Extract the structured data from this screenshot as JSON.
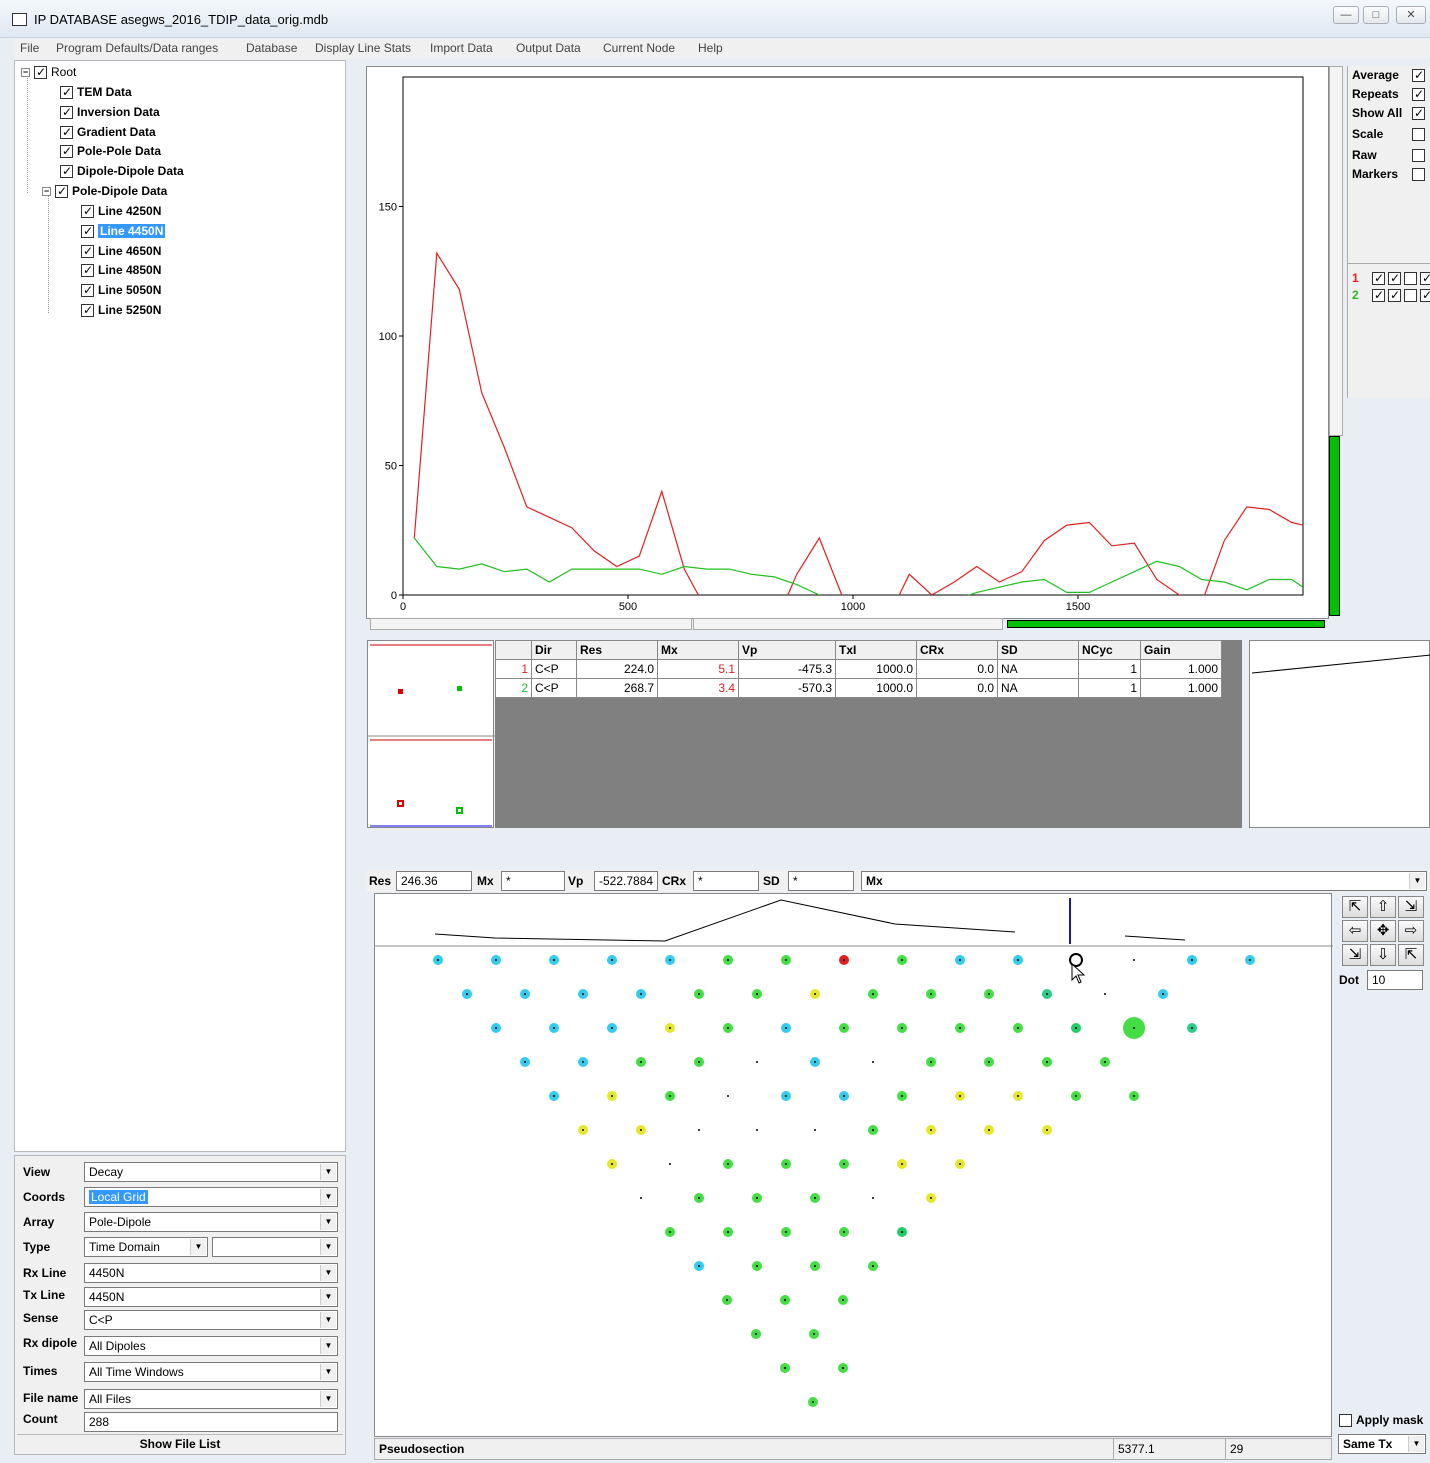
{
  "window": {
    "title": "IP DATABASE asegws_2016_TDIP_data_orig.mdb"
  },
  "menu": [
    "File",
    "Program Defaults/Data ranges",
    "Database",
    "Display Line Stats",
    "Import Data",
    "Output Data",
    "Current Node",
    "Help"
  ],
  "tree": {
    "root": "Root",
    "items": [
      "TEM Data",
      "Inversion Data",
      "Gradient Data",
      "Pole-Pole Data",
      "Dipole-Dipole Data",
      "Pole-Dipole Data"
    ],
    "lines": [
      "Line 4250N",
      "Line 4450N",
      "Line 4650N",
      "Line 4850N",
      "Line 5050N",
      "Line 5250N"
    ],
    "selected_line": "Line 4450N"
  },
  "form": {
    "view_label": "View",
    "view_value": "Decay",
    "coords_label": "Coords",
    "coords_value": "Local Grid",
    "array_label": "Array",
    "array_value": "Pole-Dipole",
    "type_label": "Type",
    "type_value": "Time Domain",
    "rxline_label": "Rx Line",
    "rxline_value": "4450N",
    "txline_label": "Tx Line",
    "txline_value": "4450N",
    "sense_label": "Sense",
    "sense_value": "C<P",
    "rxdipole_label": "Rx dipole",
    "rxdipole_value": "All Dipoles",
    "times_label": "Times",
    "times_value": "All Time Windows",
    "filename_label": "File name",
    "filename_value": "All Files",
    "count_label": "Count",
    "count_value": "288",
    "show_file_list": "Show File List"
  },
  "options": {
    "average": "Average",
    "repeats": "Repeats",
    "show_all": "Show All",
    "scale": "Scale",
    "raw": "Raw",
    "markers": "Markers",
    "series_1": "1",
    "series_2": "2"
  },
  "chart_data": {
    "type": "line",
    "x_ticks": [
      "0",
      "500",
      "1000",
      "1500"
    ],
    "y_ticks": [
      "0",
      "50",
      "100",
      "150"
    ],
    "xlim": [
      0,
      2000
    ],
    "ylim": [
      0,
      200
    ],
    "series": [
      {
        "color": "#e02020",
        "x": [
          25,
          75,
          125,
          175,
          225,
          275,
          325,
          375,
          425,
          475,
          525,
          575,
          625,
          675,
          725,
          775,
          825,
          875,
          925,
          975,
          1025,
          1075,
          1125,
          1175,
          1225,
          1275,
          1325,
          1375,
          1425,
          1475,
          1525,
          1575,
          1625,
          1675,
          1725,
          1775,
          1825,
          1875,
          1925,
          1975,
          2000
        ],
        "y": [
          22,
          132,
          118,
          78,
          57,
          34,
          30,
          26,
          17,
          11,
          15,
          40,
          10,
          -6,
          -14,
          -16,
          -12,
          8,
          22,
          0,
          -14,
          -10,
          8,
          0,
          5,
          11,
          5,
          9,
          21,
          27,
          28,
          19,
          20,
          6,
          0,
          -3,
          21,
          34,
          33,
          28,
          27
        ]
      },
      {
        "color": "#20c020",
        "x": [
          25,
          75,
          125,
          175,
          225,
          275,
          325,
          375,
          425,
          475,
          525,
          575,
          625,
          675,
          725,
          775,
          825,
          875,
          925,
          975,
          1025,
          1075,
          1125,
          1175,
          1225,
          1275,
          1325,
          1375,
          1425,
          1475,
          1525,
          1575,
          1625,
          1675,
          1725,
          1775,
          1825,
          1875,
          1925,
          1975,
          2000
        ],
        "y": [
          22,
          11,
          10,
          12,
          9,
          10,
          5,
          10,
          10,
          10,
          10,
          8,
          11,
          10,
          10,
          8,
          7,
          4,
          0,
          -3,
          -6,
          -6,
          -4,
          -1,
          -2,
          1,
          3,
          5,
          6,
          1,
          1,
          5,
          9,
          13,
          11,
          6,
          5,
          2,
          6,
          6,
          3
        ]
      }
    ]
  },
  "table": {
    "headers": [
      "",
      "Dir",
      "Res",
      "Mx",
      "Vp",
      "TxI",
      "CRx",
      "SD",
      "NCyc",
      "Gain"
    ],
    "rows": [
      [
        "1",
        "C<P",
        "224.0",
        "5.1",
        "-475.3",
        "1000.0",
        "0.0",
        "NA",
        "1",
        "1.000"
      ],
      [
        "2",
        "C<P",
        "268.7",
        "3.4",
        "-570.3",
        "1000.0",
        "0.0",
        "NA",
        "1",
        "1.000"
      ]
    ]
  },
  "params": {
    "res_label": "Res",
    "res_value": "246.36",
    "mx_label": "Mx",
    "mx_value": "*",
    "vp_label": "Vp",
    "vp_value": "-522.7884",
    "crx_label": "CRx",
    "crx_value": "*",
    "sd_label": "SD",
    "sd_value": "*",
    "display_value": "Mx"
  },
  "nav": {
    "dot_label": "Dot",
    "dot_value": "10",
    "apply_mask": "Apply mask",
    "same_tx": "Same Tx"
  },
  "status": {
    "left": "Pseudosection",
    "coord": "5377.1",
    "num": "29"
  },
  "colors": {
    "selection": "#3399ff",
    "series_red": "#e02020",
    "series_green": "#20c020"
  }
}
